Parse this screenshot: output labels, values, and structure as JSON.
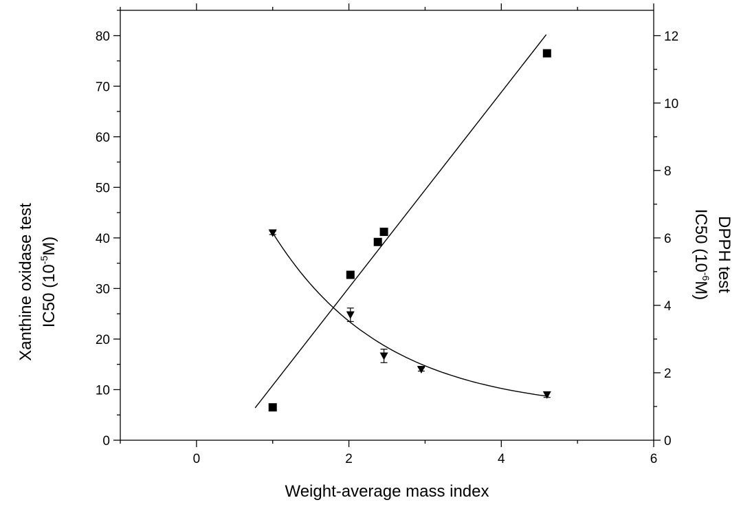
{
  "chart_data": {
    "type": "scatter",
    "xlabel": "Weight-average mass index",
    "ylabel_left": {
      "line1": "Xanthine oxidase test",
      "line2_prefix": "IC50 (10",
      "line2_sup": "-5",
      "line2_suffix": "M)"
    },
    "ylabel_right": {
      "line1": "DPPH test",
      "line2_prefix": "IC50 (10",
      "line2_sup": "-6",
      "line2_suffix": "M)"
    },
    "xlim": [
      -1,
      6
    ],
    "ylim_left": [
      0,
      85
    ],
    "ylim_right": [
      0,
      12.75
    ],
    "x_ticks": [
      "0",
      "2",
      "4",
      "6"
    ],
    "y_left_ticks": [
      "0",
      "10",
      "20",
      "30",
      "40",
      "50",
      "60",
      "70",
      "80"
    ],
    "y_right_ticks": [
      "0",
      "2",
      "4",
      "6",
      "8",
      "10",
      "12"
    ],
    "series": [
      {
        "axis": "left",
        "marker": "square",
        "x": [
          1.0,
          2.02,
          2.38,
          2.46,
          4.6
        ],
        "y": [
          6.5,
          32.7,
          39.2,
          41.2,
          76.5
        ],
        "fit": {
          "type": "linear",
          "x": [
            0.77,
            4.59
          ],
          "y": [
            6.4,
            80.2
          ]
        }
      },
      {
        "axis": "right",
        "marker": "triangle-down",
        "x": [
          1.0,
          2.02,
          2.46,
          2.95,
          4.6
        ],
        "y": [
          6.15,
          3.72,
          2.5,
          2.1,
          1.35
        ],
        "yerr": [
          0.05,
          0.2,
          0.2,
          0.05,
          0.08
        ],
        "fit": {
          "type": "exp-decay",
          "x": [
            1.0,
            4.62
          ],
          "y": [
            6.15,
            1.3
          ]
        }
      }
    ]
  }
}
